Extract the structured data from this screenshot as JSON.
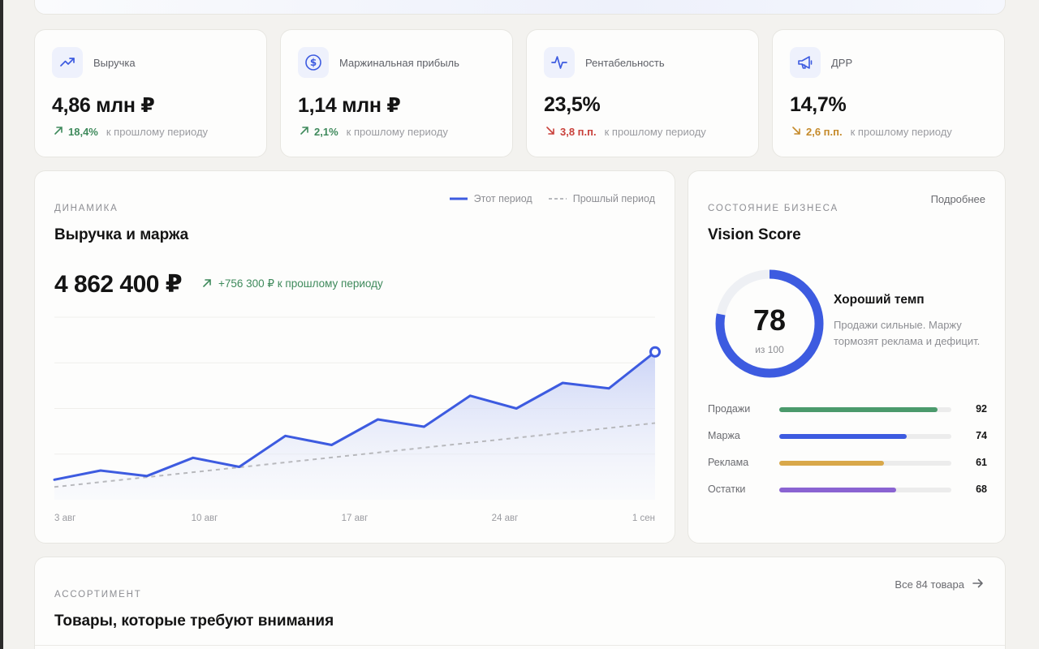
{
  "kpis": [
    {
      "icon": "trend-up-icon",
      "label": "Выручка",
      "value": "4,86 млн ₽",
      "delta": "18,4%",
      "direction": "up",
      "note": "к прошлому периоду"
    },
    {
      "icon": "dollar-icon",
      "label": "Маржинальная прибыль",
      "value": "1,14 млн ₽",
      "delta": "2,1%",
      "direction": "up",
      "note": "к прошлому периоду"
    },
    {
      "icon": "pulse-icon",
      "label": "Рентабельность",
      "value": "23,5%",
      "delta": "3,8 п.п.",
      "direction": "down",
      "note": "к прошлому периоду"
    },
    {
      "icon": "megaphone-icon",
      "label": "ДРР",
      "value": "14,7%",
      "delta": "2,6 п.п.",
      "direction": "down",
      "note": "к прошлому периоду"
    }
  ],
  "dynamics": {
    "eyebrow": "ДИНАМИКА",
    "title": "Выручка и маржа",
    "total": "4 862 400 ₽",
    "delta": "+756 300 ₽ к прошлому периоду",
    "legend_current": "Этот период",
    "legend_previous": "Прошлый период"
  },
  "chart_data": {
    "type": "area",
    "x_ticks": [
      "3 авг",
      "10 авг",
      "17 авг",
      "24 авг",
      "1 сен"
    ],
    "series": [
      {
        "name": "Этот период",
        "values": [
          0.11,
          0.16,
          0.13,
          0.23,
          0.18,
          0.35,
          0.3,
          0.44,
          0.4,
          0.57,
          0.5,
          0.64,
          0.61,
          0.81
        ]
      },
      {
        "name": "Прошлый период",
        "values": [
          0.07,
          0.42
        ]
      }
    ],
    "ylim": [
      0,
      1
    ],
    "grid": true,
    "colors": {
      "current": "#3d5be0",
      "previous": "#b8b9bd"
    }
  },
  "score": {
    "eyebrow": "СОСТОЯНИЕ БИЗНЕСА",
    "title": "Vision Score",
    "more": "Подробнее",
    "value": "78",
    "out_of": "из 100",
    "fraction": 0.78,
    "status": "Хороший темп",
    "description": "Продажи сильные. Маржу тормозят реклама и дефицит.",
    "metrics": [
      {
        "label": "Продажи",
        "value": "92",
        "fraction": 0.92,
        "color": "#4b9a6c"
      },
      {
        "label": "Маржа",
        "value": "74",
        "fraction": 0.74,
        "color": "#3d5be0"
      },
      {
        "label": "Реклама",
        "value": "61",
        "fraction": 0.61,
        "color": "#d9a84a"
      },
      {
        "label": "Остатки",
        "value": "68",
        "fraction": 0.68,
        "color": "#8a63d2"
      }
    ]
  },
  "assortment": {
    "eyebrow": "АССОРТИМЕНТ",
    "title": "Товары, которые требуют внимания",
    "all_link": "Все 84 товара"
  }
}
